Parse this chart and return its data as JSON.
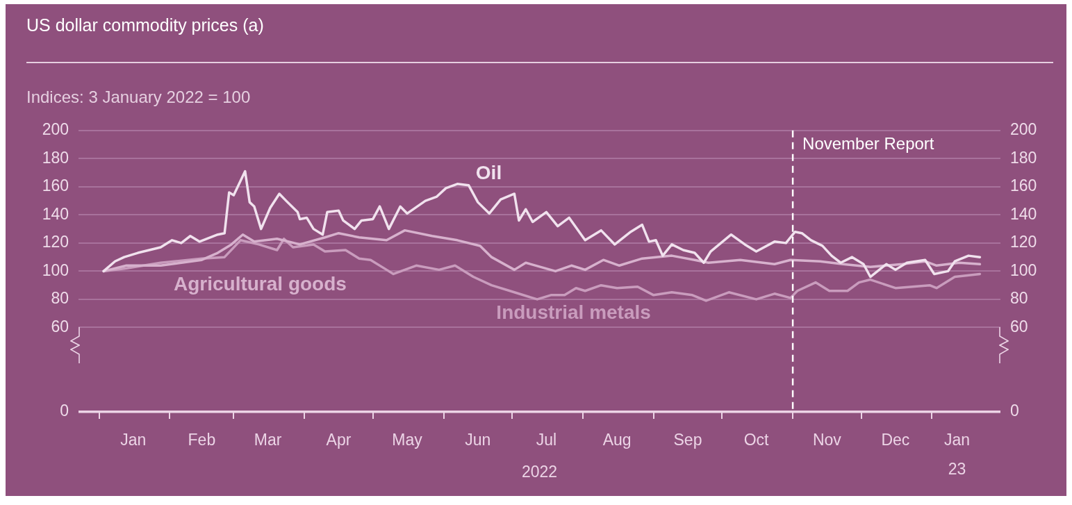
{
  "chart_data": {
    "type": "line",
    "title": "US dollar commodity prices (a)",
    "subtitle": "Indices: 3 January 2022 = 100",
    "xlim": [
      "2021-12-23",
      "2023-01-31"
    ],
    "xticks": [
      {
        "value": "2022-01-01",
        "label": null
      },
      {
        "value": "2022-02-01",
        "label": null
      },
      {
        "value": "2022-03-01",
        "label": null
      },
      {
        "value": "2022-04-01",
        "label": null
      },
      {
        "value": "2022-05-01",
        "label": null
      },
      {
        "value": "2022-06-01",
        "label": null
      },
      {
        "value": "2022-07-01",
        "label": null
      },
      {
        "value": "2022-08-01",
        "label": null
      },
      {
        "value": "2022-09-01",
        "label": null
      },
      {
        "value": "2022-10-01",
        "label": null
      },
      {
        "value": "2022-11-01",
        "label": null
      },
      {
        "value": "2022-12-01",
        "label": null
      },
      {
        "value": "2023-01-01",
        "label": null
      },
      {
        "value": "2022-01-16",
        "label": "Jan"
      },
      {
        "value": "2022-02-15",
        "label": "Feb"
      },
      {
        "value": "2022-03-16",
        "label": "Mar"
      },
      {
        "value": "2022-04-16",
        "label": "Apr"
      },
      {
        "value": "2022-05-16",
        "label": "May"
      },
      {
        "value": "2022-06-16",
        "label": "Jun"
      },
      {
        "value": "2022-07-16",
        "label": "Jul"
      },
      {
        "value": "2022-08-16",
        "label": "Aug"
      },
      {
        "value": "2022-09-16",
        "label": "Sep"
      },
      {
        "value": "2022-10-16",
        "label": "Oct"
      },
      {
        "value": "2022-11-16",
        "label": "Nov"
      },
      {
        "value": "2022-12-16",
        "label": "Dec"
      },
      {
        "value": "2023-01-12",
        "label": "Jan\n23"
      }
    ],
    "xlabel": "2022",
    "ylim": [
      0,
      200
    ],
    "yticks": [
      0,
      60,
      80,
      100,
      120,
      140,
      160,
      180,
      200
    ],
    "y2lim": [
      0,
      200
    ],
    "y2ticks": [
      0,
      60,
      80,
      100,
      120,
      140,
      160,
      180,
      200
    ],
    "grid": "y",
    "legend": false,
    "marker": "none",
    "ref_lines": [
      {
        "axis": "x",
        "value": "2022-11-01",
        "label": "November Report",
        "color": "#ffffff",
        "line_style": "dashed"
      }
    ],
    "series": [
      {
        "name": "Oil",
        "color": "#f1e2ee",
        "x": [
          "2022-01-03",
          "2022-01-08",
          "2022-01-12",
          "2022-01-18",
          "2022-01-23",
          "2022-01-28",
          "2022-02-02",
          "2022-02-06",
          "2022-02-10",
          "2022-02-14",
          "2022-02-22",
          "2022-02-25",
          "2022-02-27",
          "2022-03-01",
          "2022-03-06",
          "2022-03-08",
          "2022-03-10",
          "2022-03-13",
          "2022-03-17",
          "2022-03-21",
          "2022-03-24",
          "2022-03-29",
          "2022-03-30",
          "2022-04-02",
          "2022-04-05",
          "2022-04-09",
          "2022-04-11",
          "2022-04-16",
          "2022-04-18",
          "2022-04-23",
          "2022-04-26",
          "2022-05-01",
          "2022-05-04",
          "2022-05-08",
          "2022-05-13",
          "2022-05-16",
          "2022-05-24",
          "2022-05-29",
          "2022-06-02",
          "2022-06-07",
          "2022-06-12",
          "2022-06-16",
          "2022-06-21",
          "2022-06-26",
          "2022-07-02",
          "2022-07-04",
          "2022-07-07",
          "2022-07-10",
          "2022-07-16",
          "2022-07-21",
          "2022-07-26",
          "2022-08-02",
          "2022-08-09",
          "2022-08-15",
          "2022-08-22",
          "2022-08-27",
          "2022-08-30",
          "2022-09-02",
          "2022-09-05",
          "2022-09-09",
          "2022-09-14",
          "2022-09-19",
          "2022-09-23",
          "2022-09-26",
          "2022-10-05",
          "2022-10-11",
          "2022-10-16",
          "2022-10-24",
          "2022-10-29",
          "2022-11-02",
          "2022-11-05",
          "2022-11-09",
          "2022-11-14",
          "2022-11-18",
          "2022-11-22",
          "2022-11-27",
          "2022-12-02",
          "2022-12-05",
          "2022-12-12",
          "2022-12-16",
          "2022-12-21",
          "2022-12-29",
          "2023-01-02",
          "2023-01-08",
          "2023-01-11",
          "2023-01-17",
          "2023-01-22"
        ],
        "values": [
          100,
          107,
          110,
          113,
          115,
          117,
          122,
          120,
          125,
          121,
          126,
          127,
          156,
          154,
          171,
          149,
          146,
          130,
          145,
          155,
          150,
          142,
          137,
          138,
          130,
          126,
          142,
          143,
          136,
          130,
          136,
          137,
          146,
          130,
          146,
          141,
          150,
          153,
          159,
          162,
          161,
          149,
          141,
          151,
          155,
          136,
          144,
          135,
          142,
          132,
          138,
          122,
          129,
          119,
          128,
          133,
          121,
          122,
          111,
          119,
          115,
          113,
          106,
          114,
          126,
          119,
          114,
          121,
          120,
          128,
          127,
          122,
          118,
          111,
          106,
          110,
          105,
          96,
          105,
          101,
          106,
          108,
          98,
          100,
          107,
          111,
          110
        ]
      },
      {
        "name": "Agricultural goods",
        "color": "#d7b1cd",
        "x": [
          "2022-01-03",
          "2022-01-13",
          "2022-01-28",
          "2022-02-15",
          "2022-02-22",
          "2022-02-28",
          "2022-03-05",
          "2022-03-10",
          "2022-03-20",
          "2022-03-30",
          "2022-04-10",
          "2022-04-16",
          "2022-04-25",
          "2022-05-07",
          "2022-05-15",
          "2022-05-27",
          "2022-06-07",
          "2022-06-17",
          "2022-06-22",
          "2022-07-02",
          "2022-07-07",
          "2022-07-20",
          "2022-07-27",
          "2022-08-02",
          "2022-08-10",
          "2022-08-17",
          "2022-08-27",
          "2022-09-09",
          "2022-09-19",
          "2022-09-25",
          "2022-10-09",
          "2022-10-24",
          "2022-10-31",
          "2022-11-13",
          "2022-11-23",
          "2022-12-05",
          "2022-12-19",
          "2022-12-29",
          "2023-01-03",
          "2023-01-13",
          "2023-01-22"
        ],
        "values": [
          100,
          104,
          104,
          108,
          113,
          119,
          126,
          121,
          123,
          119,
          124,
          127,
          124,
          122,
          129,
          125,
          122,
          118,
          110,
          101,
          106,
          100,
          104,
          101,
          108,
          104,
          109,
          111,
          108,
          106,
          108,
          105,
          108,
          107,
          105,
          103,
          105,
          107,
          104,
          106,
          105
        ]
      },
      {
        "name": "Industrial metals",
        "color": "#c99cbd",
        "x": [
          "2022-01-03",
          "2022-01-13",
          "2022-01-28",
          "2022-02-15",
          "2022-02-25",
          "2022-03-04",
          "2022-03-12",
          "2022-03-20",
          "2022-03-23",
          "2022-03-27",
          "2022-04-05",
          "2022-04-10",
          "2022-04-19",
          "2022-04-25",
          "2022-04-30",
          "2022-05-07",
          "2022-05-10",
          "2022-05-20",
          "2022-05-30",
          "2022-06-06",
          "2022-06-14",
          "2022-06-22",
          "2022-07-02",
          "2022-07-12",
          "2022-07-18",
          "2022-07-24",
          "2022-07-29",
          "2022-08-02",
          "2022-08-09",
          "2022-08-16",
          "2022-08-25",
          "2022-09-01",
          "2022-09-09",
          "2022-09-18",
          "2022-09-24",
          "2022-10-04",
          "2022-10-16",
          "2022-10-24",
          "2022-10-31",
          "2022-11-03",
          "2022-11-11",
          "2022-11-17",
          "2022-11-25",
          "2022-11-30",
          "2022-12-05",
          "2022-12-16",
          "2022-12-31",
          "2023-01-03",
          "2023-01-11",
          "2023-01-22"
        ],
        "values": [
          100,
          102,
          106,
          109,
          110,
          122,
          119,
          115,
          123,
          117,
          119,
          114,
          115,
          109,
          108,
          101,
          98,
          104,
          101,
          104,
          96,
          90,
          85,
          80,
          83,
          83,
          88,
          86,
          90,
          88,
          89,
          83,
          85,
          83,
          79,
          85,
          80,
          84,
          81,
          86,
          92,
          86,
          86,
          92,
          94,
          88,
          90,
          88,
          96,
          98
        ]
      }
    ]
  }
}
